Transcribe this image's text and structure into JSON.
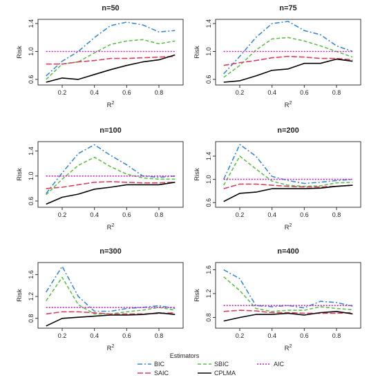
{
  "figure": {
    "legend_title": "Estimators",
    "legend_items": [
      {
        "key": "BIC",
        "label": "BIC"
      },
      {
        "key": "SBIC",
        "label": "SBIC"
      },
      {
        "key": "AIC",
        "label": "AIC"
      },
      {
        "key": "SAIC",
        "label": "SAIC"
      },
      {
        "key": "CPLMA",
        "label": "CPLMA"
      }
    ]
  },
  "series_styles": {
    "BIC": {
      "color": "#3a87d6",
      "dash": "7,3,2,3",
      "width": 1.6
    },
    "SBIC": {
      "color": "#5cc04a",
      "dash": "5,3",
      "width": 1.6
    },
    "AIC": {
      "color": "#c71fb8",
      "dash": "2,2",
      "width": 1.6
    },
    "SAIC": {
      "color": "#d93d5c",
      "dash": "8,3",
      "width": 1.6
    },
    "CPLMA": {
      "color": "#000000",
      "dash": "",
      "width": 1.6
    }
  },
  "chart_data": [
    {
      "type": "line",
      "title": "n=50",
      "xlabel": "R",
      "xlabel_sup": "2",
      "ylabel": "Risk",
      "x": [
        0.1,
        0.2,
        0.3,
        0.4,
        0.5,
        0.6,
        0.7,
        0.8,
        0.9
      ],
      "xlim": [
        0.05,
        0.95
      ],
      "ylim": [
        0.52,
        1.46
      ],
      "xticks": [
        "0.2",
        "0.4",
        "0.6",
        "0.8"
      ],
      "yticks": [
        "0.6",
        "1.0",
        "1.4"
      ],
      "series": [
        {
          "name": "BIC",
          "values": [
            0.65,
            0.86,
            1.0,
            1.2,
            1.37,
            1.42,
            1.38,
            1.28,
            1.3
          ]
        },
        {
          "name": "SBIC",
          "values": [
            0.6,
            0.82,
            0.85,
            0.98,
            1.1,
            1.15,
            1.17,
            1.11,
            1.15
          ]
        },
        {
          "name": "AIC",
          "values": [
            1.0,
            1.0,
            1.0,
            1.0,
            1.0,
            1.0,
            1.0,
            1.0,
            1.0
          ]
        },
        {
          "name": "SAIC",
          "values": [
            0.82,
            0.82,
            0.85,
            0.87,
            0.9,
            0.9,
            0.91,
            0.92,
            0.93
          ]
        },
        {
          "name": "CPLMA",
          "values": [
            0.56,
            0.62,
            0.6,
            0.67,
            0.74,
            0.8,
            0.85,
            0.88,
            0.95
          ]
        }
      ]
    },
    {
      "type": "line",
      "title": "n=75",
      "xlabel": "R",
      "xlabel_sup": "2",
      "ylabel": "Risk",
      "x": [
        0.1,
        0.2,
        0.3,
        0.4,
        0.5,
        0.6,
        0.7,
        0.8,
        0.9
      ],
      "xlim": [
        0.05,
        0.95
      ],
      "ylim": [
        0.52,
        1.46
      ],
      "xticks": [
        "0.2",
        "0.4",
        "0.6",
        "0.8"
      ],
      "yticks": [
        "0.6",
        "1.0",
        "1.4"
      ],
      "series": [
        {
          "name": "BIC",
          "values": [
            0.68,
            0.93,
            1.2,
            1.4,
            1.43,
            1.3,
            1.24,
            1.08,
            1.0
          ]
        },
        {
          "name": "SBIC",
          "values": [
            0.63,
            0.8,
            1.02,
            1.18,
            1.2,
            1.15,
            1.08,
            1.0,
            0.92
          ]
        },
        {
          "name": "AIC",
          "values": [
            1.0,
            1.0,
            1.0,
            1.0,
            1.0,
            1.0,
            1.0,
            1.0,
            1.0
          ]
        },
        {
          "name": "SAIC",
          "values": [
            0.8,
            0.84,
            0.87,
            0.91,
            0.93,
            0.92,
            0.9,
            0.9,
            0.88
          ]
        },
        {
          "name": "CPLMA",
          "values": [
            0.56,
            0.58,
            0.65,
            0.73,
            0.75,
            0.83,
            0.83,
            0.89,
            0.86
          ]
        }
      ]
    },
    {
      "type": "line",
      "title": "n=100",
      "xlabel": "R",
      "xlabel_sup": "2",
      "ylabel": "Risk",
      "x": [
        0.1,
        0.2,
        0.3,
        0.4,
        0.5,
        0.6,
        0.7,
        0.8,
        0.9
      ],
      "xlim": [
        0.05,
        0.95
      ],
      "ylim": [
        0.5,
        1.55
      ],
      "xticks": [
        "0.2",
        "0.4",
        "0.6",
        "0.8"
      ],
      "yticks": [
        "0.6",
        "1.0",
        "1.4"
      ],
      "series": [
        {
          "name": "BIC",
          "values": [
            0.72,
            1.05,
            1.36,
            1.5,
            1.33,
            1.18,
            1.0,
            0.98,
            1.0
          ]
        },
        {
          "name": "SBIC",
          "values": [
            0.7,
            0.95,
            1.17,
            1.3,
            1.15,
            1.03,
            0.97,
            0.95,
            0.95
          ]
        },
        {
          "name": "AIC",
          "values": [
            1.0,
            1.0,
            1.0,
            1.0,
            1.0,
            1.0,
            1.0,
            1.0,
            1.0
          ]
        },
        {
          "name": "SAIC",
          "values": [
            0.8,
            0.82,
            0.86,
            0.9,
            0.91,
            0.9,
            0.89,
            0.89,
            0.9
          ]
        },
        {
          "name": "CPLMA",
          "values": [
            0.55,
            0.66,
            0.71,
            0.79,
            0.82,
            0.86,
            0.86,
            0.86,
            0.9
          ]
        }
      ]
    },
    {
      "type": "line",
      "title": "n=200",
      "xlabel": "R",
      "xlabel_sup": "2",
      "ylabel": "Risk",
      "x": [
        0.1,
        0.2,
        0.3,
        0.4,
        0.5,
        0.6,
        0.7,
        0.8,
        0.9
      ],
      "xlim": [
        0.05,
        0.95
      ],
      "ylim": [
        0.52,
        1.65
      ],
      "xticks": [
        "0.2",
        "0.4",
        "0.6",
        "0.8"
      ],
      "yticks": [
        "0.6",
        "1.0",
        "1.4"
      ],
      "series": [
        {
          "name": "BIC",
          "values": [
            1.0,
            1.6,
            1.4,
            1.05,
            0.98,
            0.93,
            0.95,
            0.98,
            1.0
          ]
        },
        {
          "name": "SBIC",
          "values": [
            0.9,
            1.4,
            1.18,
            0.97,
            0.9,
            0.88,
            0.89,
            0.94,
            0.95
          ]
        },
        {
          "name": "AIC",
          "values": [
            1.0,
            1.0,
            1.0,
            1.0,
            1.0,
            1.0,
            1.0,
            1.0,
            1.0
          ]
        },
        {
          "name": "SAIC",
          "values": [
            0.84,
            0.92,
            0.92,
            0.9,
            0.88,
            0.87,
            0.87,
            0.88,
            0.9
          ]
        },
        {
          "name": "CPLMA",
          "values": [
            0.62,
            0.76,
            0.78,
            0.84,
            0.84,
            0.84,
            0.85,
            0.88,
            0.9
          ]
        }
      ]
    },
    {
      "type": "line",
      "title": "n=300",
      "xlabel": "R",
      "xlabel_sup": "2",
      "ylabel": "Risk",
      "x": [
        0.1,
        0.2,
        0.3,
        0.4,
        0.5,
        0.6,
        0.7,
        0.8,
        0.9
      ],
      "xlim": [
        0.05,
        0.95
      ],
      "ylim": [
        0.62,
        1.82
      ],
      "xticks": [
        "0.2",
        "0.4",
        "0.6",
        "0.8"
      ],
      "yticks": [
        "0.8",
        "1.2",
        "1.6"
      ],
      "series": [
        {
          "name": "BIC",
          "values": [
            1.28,
            1.75,
            1.2,
            0.93,
            0.93,
            0.98,
            1.0,
            1.03,
            0.98
          ]
        },
        {
          "name": "SBIC",
          "values": [
            1.12,
            1.55,
            1.05,
            0.88,
            0.88,
            0.92,
            0.95,
            1.0,
            0.95
          ]
        },
        {
          "name": "AIC",
          "values": [
            1.0,
            1.0,
            1.0,
            1.0,
            1.0,
            1.0,
            1.0,
            1.0,
            1.0
          ]
        },
        {
          "name": "SAIC",
          "values": [
            0.88,
            0.92,
            0.92,
            0.9,
            0.88,
            0.88,
            0.88,
            0.89,
            0.9
          ]
        },
        {
          "name": "CPLMA",
          "values": [
            0.66,
            0.8,
            0.82,
            0.84,
            0.86,
            0.86,
            0.87,
            0.9,
            0.87
          ]
        }
      ]
    },
    {
      "type": "line",
      "title": "n=400",
      "xlabel": "R",
      "xlabel_sup": "2",
      "ylabel": "Risk",
      "x": [
        0.1,
        0.2,
        0.3,
        0.4,
        0.5,
        0.6,
        0.7,
        0.8,
        0.9
      ],
      "xlim": [
        0.05,
        0.95
      ],
      "ylim": [
        0.62,
        1.72
      ],
      "xticks": [
        "0.2",
        "0.4",
        "0.6",
        "0.8"
      ],
      "yticks": [
        "0.8",
        "1.2",
        "1.6"
      ],
      "series": [
        {
          "name": "BIC",
          "values": [
            1.6,
            1.45,
            1.0,
            0.98,
            1.0,
            0.96,
            1.07,
            1.05,
            0.99
          ]
        },
        {
          "name": "SBIC",
          "values": [
            1.48,
            1.25,
            0.95,
            0.9,
            0.92,
            0.92,
            0.98,
            0.95,
            0.93
          ]
        },
        {
          "name": "AIC",
          "values": [
            1.0,
            1.0,
            1.0,
            1.0,
            1.0,
            1.0,
            1.0,
            1.0,
            1.0
          ]
        },
        {
          "name": "SAIC",
          "values": [
            0.9,
            0.92,
            0.91,
            0.88,
            0.88,
            0.87,
            0.87,
            0.87,
            0.88
          ]
        },
        {
          "name": "CPLMA",
          "values": [
            0.74,
            0.8,
            0.85,
            0.85,
            0.87,
            0.84,
            0.88,
            0.9,
            0.86
          ]
        }
      ]
    }
  ]
}
